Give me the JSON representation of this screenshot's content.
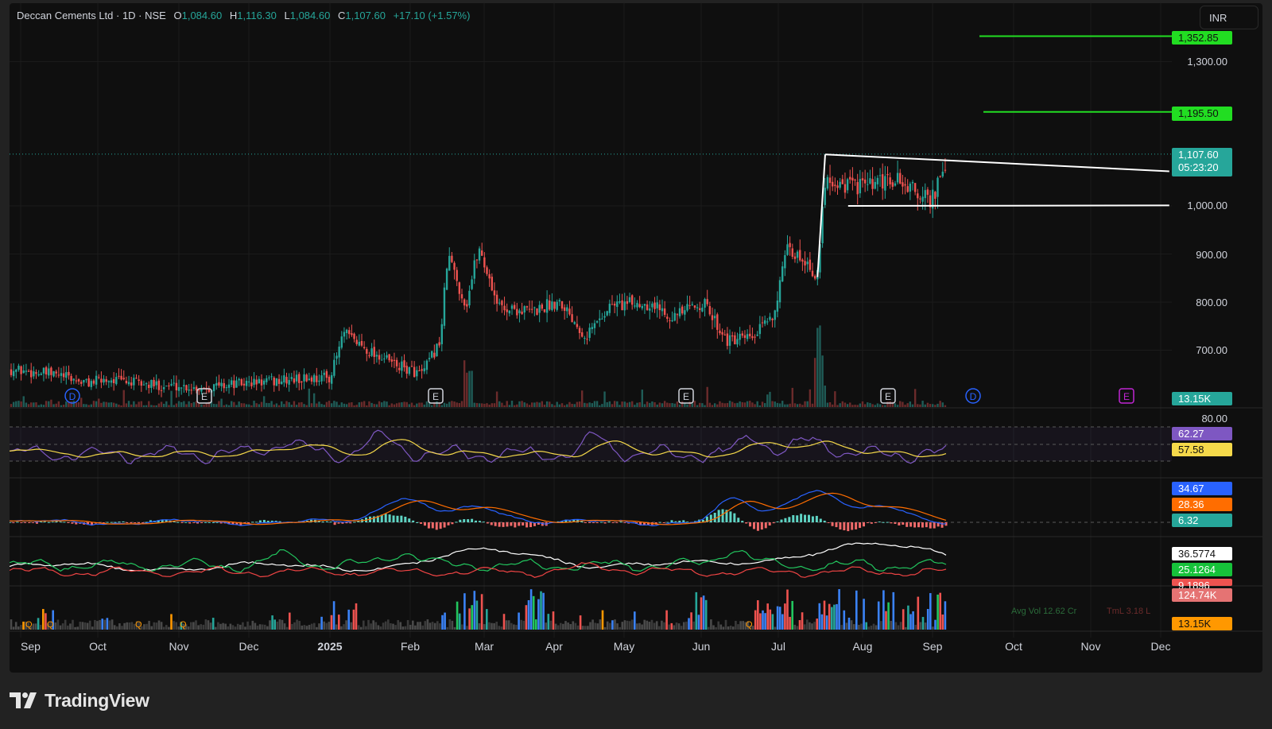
{
  "legend": {
    "title": "Deccan Cements Ltd · 1D · NSE",
    "open_label": "O",
    "open": "1,084.60",
    "high_label": "H",
    "high": "1,116.30",
    "low_label": "L",
    "low": "1,084.60",
    "close_label": "C",
    "close": "1,107.60",
    "change": "+17.10 (+1.57%)"
  },
  "currency": "INR",
  "brand": "TradingView",
  "colors": {
    "up": "#26a69a",
    "down": "#ef5350",
    "level_line": "#22dd22",
    "rsi": "#7e57c2",
    "rsi_ma": "#f5d94a",
    "macd": "#2962ff",
    "signal": "#ff6d00",
    "adx": "#ffffff",
    "di_plus": "#22c55e",
    "di_minus": "#ef4444",
    "vol_blue": "#2962ff",
    "vol_orange": "#ff9800"
  },
  "price_scale": [
    "1,300.00",
    "1,000.00",
    "900.00",
    "800.00",
    "700.00"
  ],
  "price_tags": {
    "target_high": "1,352.85",
    "target_mid": "1,195.50",
    "last_price": "1,107.60",
    "countdown": "05:23:20",
    "volume_main": "13.15K"
  },
  "rsi_panel": {
    "upper": "80.00",
    "rsi": "62.27",
    "rsi_ma": "57.58"
  },
  "macd_panel": {
    "macd": "34.67",
    "signal": "28.36",
    "hist": "6.32"
  },
  "dmi_panel": {
    "adx": "36.5774",
    "di_plus": "25.1264",
    "di_minus": "9.1896"
  },
  "volume_panel": {
    "vol_ma": "124.74K",
    "vol": "13.15K",
    "avg_vol_text": "Avg Vol 12.62 Cr",
    "turnover_text": "TmL 3.18 L"
  },
  "event_markers": [
    "D",
    "E",
    "E",
    "E",
    "E",
    "D",
    "E"
  ],
  "quarter_markers": [
    "Q",
    "Q",
    "Q",
    "Q",
    "Q"
  ],
  "time_axis": [
    "Sep",
    "Oct",
    "Nov",
    "Dec",
    "2025",
    "Feb",
    "Mar",
    "Apr",
    "May",
    "Jun",
    "Jul",
    "Aug",
    "Sep",
    "Oct",
    "Nov",
    "Dec"
  ],
  "chart_data": {
    "type": "candlestick",
    "symbol": "Deccan Cements Ltd",
    "interval": "1D",
    "exchange": "NSE",
    "y_range": [
      650,
      1380
    ],
    "price_path": [
      [
        "2024-09-02",
        660
      ],
      [
        "2024-09-20",
        648
      ],
      [
        "2024-10-01",
        632
      ],
      [
        "2024-10-10",
        640
      ],
      [
        "2024-10-25",
        628
      ],
      [
        "2024-11-05",
        626
      ],
      [
        "2024-11-15",
        622
      ],
      [
        "2024-11-25",
        628
      ],
      [
        "2024-12-05",
        632
      ],
      [
        "2024-12-15",
        636
      ],
      [
        "2024-12-24",
        640
      ],
      [
        "2025-01-05",
        645
      ],
      [
        "2025-01-10",
        735
      ],
      [
        "2025-01-20",
        700
      ],
      [
        "2025-01-31",
        668
      ],
      [
        "2025-02-10",
        650
      ],
      [
        "2025-02-17",
        720
      ],
      [
        "2025-02-20",
        900
      ],
      [
        "2025-02-27",
        790
      ],
      [
        "2025-03-04",
        915
      ],
      [
        "2025-03-12",
        790
      ],
      [
        "2025-03-25",
        780
      ],
      [
        "2025-04-05",
        805
      ],
      [
        "2025-04-15",
        730
      ],
      [
        "2025-04-25",
        795
      ],
      [
        "2025-05-10",
        798
      ],
      [
        "2025-05-20",
        770
      ],
      [
        "2025-05-31",
        800
      ],
      [
        "2025-06-10",
        718
      ],
      [
        "2025-06-20",
        725
      ],
      [
        "2025-06-28",
        780
      ],
      [
        "2025-07-03",
        905
      ],
      [
        "2025-07-10",
        890
      ],
      [
        "2025-07-15",
        852
      ],
      [
        "2025-07-18",
        1060
      ],
      [
        "2025-07-25",
        1045
      ],
      [
        "2025-08-05",
        1040
      ],
      [
        "2025-08-15",
        1055
      ],
      [
        "2025-08-28",
        1010
      ],
      [
        "2025-09-02",
        1060
      ],
      [
        "2025-09-05",
        1107.6
      ]
    ],
    "levels": [
      {
        "label": "1,352.85",
        "value": 1352.85
      },
      {
        "label": "1,195.50",
        "value": 1195.5
      }
    ],
    "trendlines": [
      {
        "from": [
          "2025-07-15",
          852
        ],
        "to": [
          "2025-07-18",
          1107
        ]
      },
      {
        "from": [
          "2025-07-18",
          1107
        ],
        "to": [
          "2025-11-30",
          1072
        ]
      },
      {
        "from": [
          "2025-07-27",
          1000
        ],
        "to": [
          "2025-11-30",
          1001
        ]
      }
    ],
    "last": {
      "open": 1084.6,
      "high": 1116.3,
      "low": 1084.6,
      "close": 1107.6,
      "change": 17.1,
      "change_pct": 1.57,
      "volume": "13.15K"
    },
    "indicators": {
      "rsi": {
        "value": 62.27,
        "ma": 57.58
      },
      "macd": {
        "macd": 34.67,
        "signal": 28.36,
        "histogram": 6.32
      },
      "dmi": {
        "adx": 36.5774,
        "di_plus": 25.1264,
        "di_minus": 9.1896
      },
      "volume": {
        "ma": "124.74K",
        "last": "13.15K"
      }
    }
  }
}
